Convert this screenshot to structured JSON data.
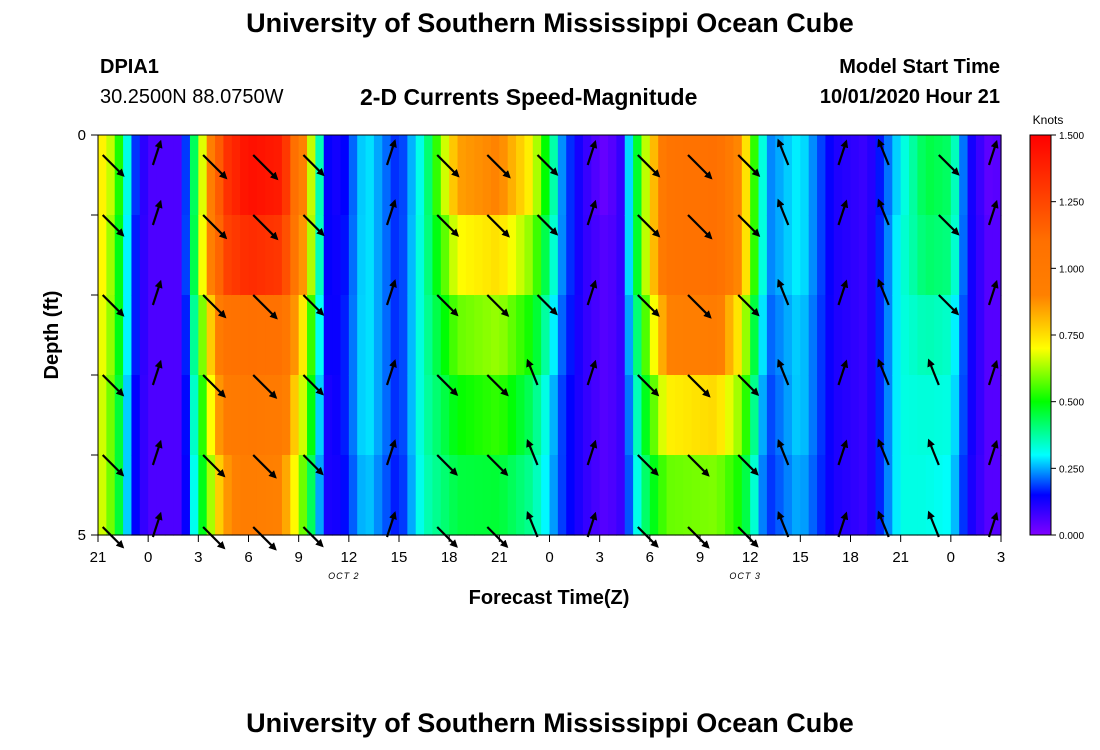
{
  "page": {
    "title_top": "University of Southern Mississippi Ocean Cube",
    "title_bottom": "University of Southern Mississippi Ocean Cube",
    "station": "DPIA1",
    "coordinates": "30.2500N 88.0750W",
    "subtitle": "2-D Currents Speed-Magnitude",
    "model_start_label": "Model Start Time",
    "model_start_value": "10/01/2020 Hour 21"
  },
  "chart_data": {
    "type": "heatmap",
    "title": "2-D Currents Speed-Magnitude",
    "xlabel": "Forecast Time(Z)",
    "ylabel": "Depth (ft)",
    "x_ticks": [
      "21",
      "0",
      "3",
      "6",
      "9",
      "12",
      "15",
      "18",
      "21",
      "0",
      "3",
      "6",
      "9",
      "12",
      "15",
      "18",
      "21",
      "0",
      "3"
    ],
    "x_tick_hours": [
      0,
      3,
      6,
      9,
      12,
      15,
      18,
      21,
      24,
      27,
      30,
      33,
      36,
      39,
      42,
      45,
      48,
      51,
      54
    ],
    "date_labels": [
      {
        "text": "OCT 2",
        "hour": 15
      },
      {
        "text": "OCT 3",
        "hour": 39
      }
    ],
    "y_ticks": [
      "0",
      "5"
    ],
    "ylim": [
      0,
      5
    ],
    "xlim_hours": [
      0,
      54
    ],
    "colorbar": {
      "label": "Knots",
      "ticks": [
        "1.500",
        "1.250",
        "1.000",
        "0.750",
        "0.500",
        "0.250",
        "0.000"
      ],
      "tick_values": [
        1.5,
        1.25,
        1.0,
        0.75,
        0.5,
        0.25,
        0.0
      ],
      "range": [
        0,
        1.5
      ],
      "stops": [
        {
          "value": 0.0,
          "color": "#8000ff"
        },
        {
          "value": 0.15,
          "color": "#0000ff"
        },
        {
          "value": 0.3,
          "color": "#00ffff"
        },
        {
          "value": 0.5,
          "color": "#00ff00"
        },
        {
          "value": 0.7,
          "color": "#ffff00"
        },
        {
          "value": 0.9,
          "color": "#ff8000"
        },
        {
          "value": 1.1,
          "color": "#ff7000"
        },
        {
          "value": 1.5,
          "color": "#ff0000"
        }
      ]
    },
    "rows": 5,
    "speed_keyframes": [
      {
        "h": 0,
        "v": [
          0.75,
          0.75,
          0.72,
          0.7,
          0.7
        ]
      },
      {
        "h": 1,
        "v": [
          0.62,
          0.58,
          0.58,
          0.55,
          0.55
        ]
      },
      {
        "h": 2,
        "v": [
          0.22,
          0.2,
          0.2,
          0.18,
          0.18
        ]
      },
      {
        "h": 3,
        "v": [
          0.06,
          0.06,
          0.06,
          0.06,
          0.06
        ]
      },
      {
        "h": 5,
        "v": [
          0.06,
          0.06,
          0.06,
          0.06,
          0.06
        ]
      },
      {
        "h": 6.3,
        "v": [
          0.7,
          0.72,
          0.62,
          0.55,
          0.5
        ]
      },
      {
        "h": 7.5,
        "v": [
          1.3,
          1.25,
          1.05,
          0.95,
          0.85
        ]
      },
      {
        "h": 9,
        "v": [
          1.45,
          1.35,
          1.1,
          1.0,
          0.95
        ]
      },
      {
        "h": 11,
        "v": [
          1.4,
          1.3,
          1.08,
          0.97,
          0.9
        ]
      },
      {
        "h": 12.5,
        "v": [
          0.8,
          0.78,
          0.66,
          0.6,
          0.52
        ]
      },
      {
        "h": 13.6,
        "v": [
          0.15,
          0.15,
          0.14,
          0.12,
          0.12
        ]
      },
      {
        "h": 14.5,
        "v": [
          0.12,
          0.13,
          0.14,
          0.14,
          0.13
        ]
      },
      {
        "h": 16,
        "v": [
          0.3,
          0.3,
          0.3,
          0.3,
          0.28
        ]
      },
      {
        "h": 18,
        "v": [
          0.16,
          0.16,
          0.16,
          0.16,
          0.15
        ]
      },
      {
        "h": 19.5,
        "v": [
          0.35,
          0.36,
          0.36,
          0.36,
          0.35
        ]
      },
      {
        "h": 21.5,
        "v": [
          0.85,
          0.7,
          0.58,
          0.5,
          0.45
        ]
      },
      {
        "h": 24,
        "v": [
          0.9,
          0.75,
          0.62,
          0.54,
          0.46
        ]
      },
      {
        "h": 26,
        "v": [
          0.7,
          0.6,
          0.5,
          0.42,
          0.38
        ]
      },
      {
        "h": 27.8,
        "v": [
          0.22,
          0.22,
          0.2,
          0.18,
          0.18
        ]
      },
      {
        "h": 29,
        "v": [
          0.1,
          0.1,
          0.1,
          0.1,
          0.1
        ]
      },
      {
        "h": 30.2,
        "v": [
          0.03,
          0.05,
          0.05,
          0.05,
          0.05
        ]
      },
      {
        "h": 31.2,
        "v": [
          0.07,
          0.07,
          0.07,
          0.07,
          0.07
        ]
      },
      {
        "h": 32.6,
        "v": [
          0.6,
          0.6,
          0.52,
          0.45,
          0.4
        ]
      },
      {
        "h": 34,
        "v": [
          1.05,
          1.05,
          0.9,
          0.72,
          0.58
        ]
      },
      {
        "h": 37,
        "v": [
          1.1,
          1.1,
          0.95,
          0.76,
          0.6
        ]
      },
      {
        "h": 38.5,
        "v": [
          0.85,
          0.85,
          0.7,
          0.6,
          0.5
        ]
      },
      {
        "h": 40,
        "v": [
          0.22,
          0.22,
          0.2,
          0.18,
          0.17
        ]
      },
      {
        "h": 42,
        "v": [
          0.3,
          0.3,
          0.28,
          0.28,
          0.26
        ]
      },
      {
        "h": 44,
        "v": [
          0.12,
          0.12,
          0.12,
          0.12,
          0.12
        ]
      },
      {
        "h": 46,
        "v": [
          0.08,
          0.08,
          0.08,
          0.08,
          0.08
        ]
      },
      {
        "h": 48,
        "v": [
          0.3,
          0.32,
          0.32,
          0.32,
          0.32
        ]
      },
      {
        "h": 49.5,
        "v": [
          0.45,
          0.42,
          0.36,
          0.33,
          0.32
        ]
      },
      {
        "h": 51,
        "v": [
          0.42,
          0.4,
          0.34,
          0.32,
          0.3
        ]
      },
      {
        "h": 52,
        "v": [
          0.15,
          0.15,
          0.15,
          0.15,
          0.14
        ]
      },
      {
        "h": 53.2,
        "v": [
          0.04,
          0.05,
          0.05,
          0.05,
          0.05
        ]
      },
      {
        "h": 54,
        "v": [
          0.05,
          0.05,
          0.05,
          0.05,
          0.05
        ]
      }
    ],
    "vector_hours": [
      1,
      4,
      7,
      10,
      13,
      18,
      21,
      24,
      27,
      30,
      33,
      36,
      39,
      42,
      45,
      48,
      51,
      54
    ],
    "vector_depths_ft": [
      0.25,
      1.0,
      2.0,
      3.0,
      4.0,
      4.9
    ],
    "vector_direction_note": "SE (ebb) at peak speeds, NNE/N (flood) in slack bands"
  }
}
